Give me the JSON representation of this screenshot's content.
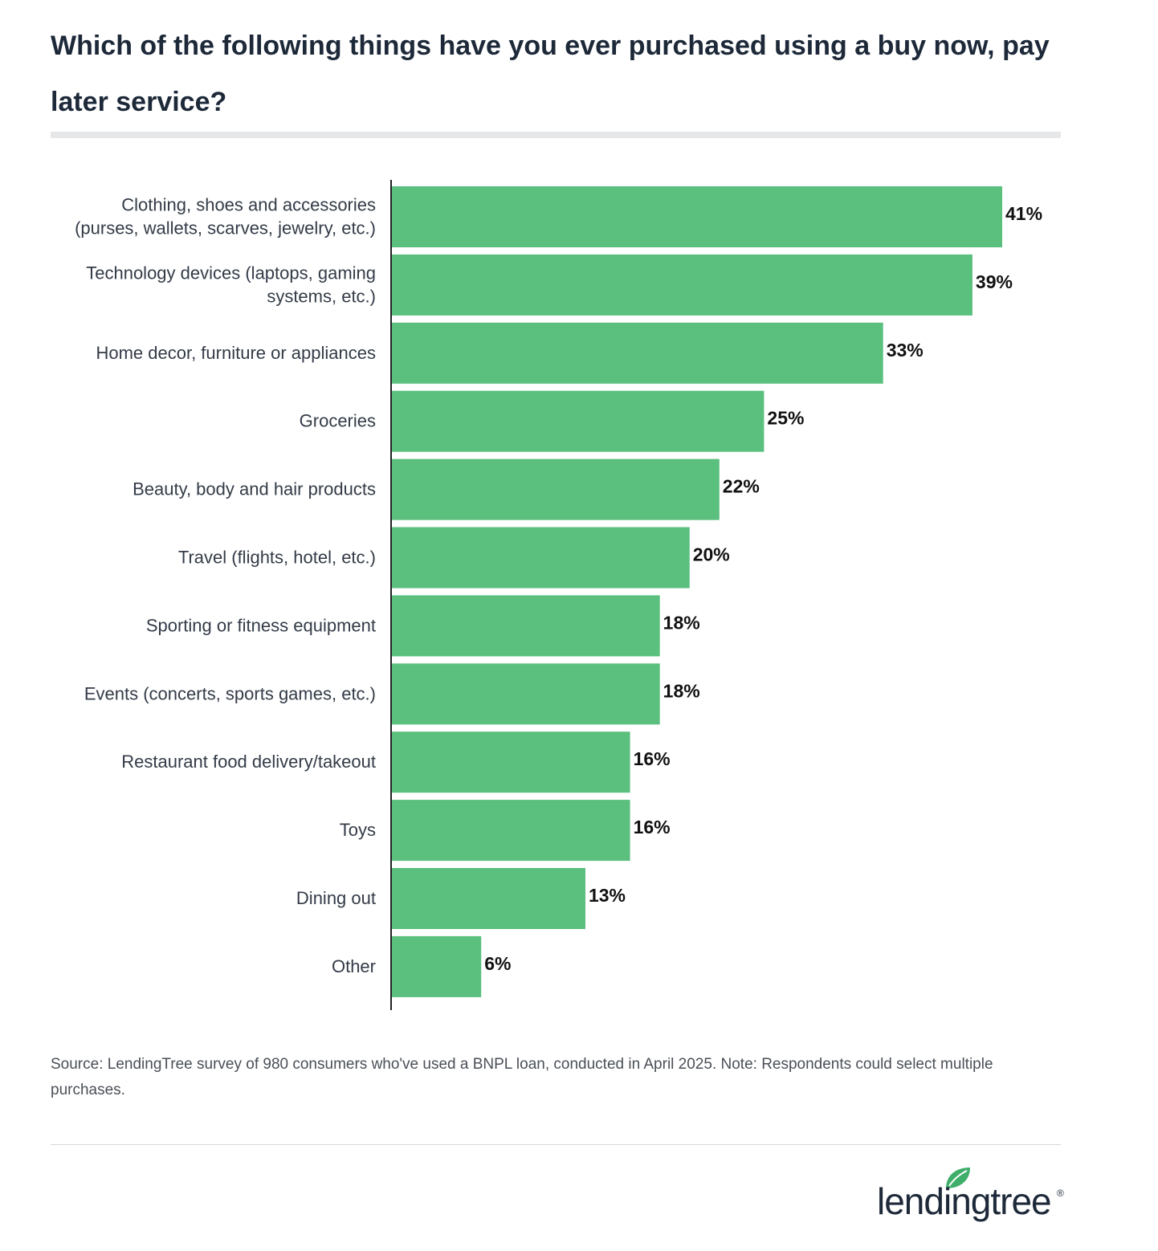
{
  "title": "Which of the following things have you ever purchased using a buy now, pay later service?",
  "source_note": "Source: LendingTree survey of 980 consumers who've used a BNPL loan, conducted in April 2025. Note: Respondents could select multiple purchases.",
  "brand": {
    "name": "lendingtree",
    "logo_icon": "leaf-icon",
    "registered_mark": "®"
  },
  "colors": {
    "bar": "#5bbf7e",
    "axis": "#222222",
    "leaf": "#3fae6a"
  },
  "chart_data": {
    "type": "bar",
    "orientation": "horizontal",
    "categories": [
      [
        "Clothing, shoes and accessories",
        "(purses, wallets, scarves, jewelry, etc.)"
      ],
      [
        "Technology devices (laptops, gaming",
        "systems, etc.)"
      ],
      [
        "Home decor, furniture or appliances"
      ],
      [
        "Groceries"
      ],
      [
        "Beauty, body and hair products"
      ],
      [
        "Travel (flights, hotel, etc.)"
      ],
      [
        "Sporting or fitness equipment"
      ],
      [
        "Events (concerts, sports games, etc.)"
      ],
      [
        "Restaurant food delivery/takeout"
      ],
      [
        "Toys"
      ],
      [
        "Dining out"
      ],
      [
        "Other"
      ]
    ],
    "values": [
      41,
      39,
      33,
      25,
      22,
      20,
      18,
      18,
      16,
      16,
      13,
      6
    ],
    "value_labels": [
      "41%",
      "39%",
      "33%",
      "25%",
      "22%",
      "20%",
      "18%",
      "18%",
      "16%",
      "16%",
      "13%",
      "6%"
    ],
    "unit": "%",
    "xlim": [
      0,
      41
    ],
    "grid": false,
    "legend": "none"
  }
}
